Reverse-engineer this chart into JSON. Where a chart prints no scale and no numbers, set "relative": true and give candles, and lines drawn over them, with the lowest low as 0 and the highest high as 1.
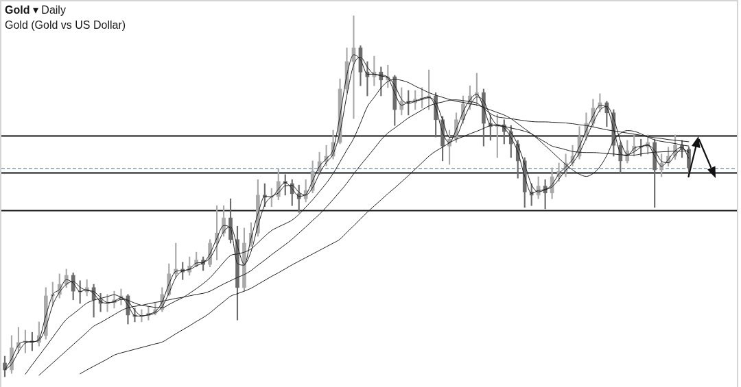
{
  "chart_data": {
    "type": "candlestick",
    "title": "Gold ▾ Daily",
    "subtitle": "Gold (Gold vs US Dollar)",
    "relative": true,
    "tick_labels": false,
    "categories": [
      null,
      null,
      null,
      null,
      null,
      null,
      null,
      null,
      null,
      null,
      null,
      null,
      null,
      null,
      null,
      null,
      null,
      null,
      null,
      null,
      null,
      null,
      null,
      null,
      null,
      null,
      null,
      null,
      null,
      null,
      null,
      null,
      null,
      null,
      null,
      null,
      null,
      null,
      null,
      null,
      null,
      null,
      null,
      null,
      null,
      null,
      null,
      null,
      null,
      null,
      null,
      null,
      null,
      null,
      null,
      null,
      null,
      null,
      null,
      null,
      null,
      null,
      null,
      null,
      null,
      null,
      null,
      null,
      null,
      null,
      null,
      null,
      null,
      null,
      null,
      null,
      null,
      null,
      null,
      null,
      null,
      null,
      null,
      null,
      null,
      null,
      null,
      null,
      null,
      null,
      null,
      null,
      null,
      null,
      null,
      null,
      null,
      null,
      null,
      null,
      null
    ],
    "colors": [
      "#6b6b6b",
      "#a9a9a9",
      "#a9a9a9",
      "#a9a9a9",
      "#6b6b6b",
      "#a9a9a9",
      "#a9a9a9",
      "#a9a9a9",
      "#a9a9a9",
      "#a9a9a9",
      "#6b6b6b",
      "#6b6b6b",
      "#a9a9a9",
      "#6b6b6b",
      "#6b6b6b",
      "#a9a9a9",
      "#a9a9a9",
      "#a9a9a9",
      "#6b6b6b",
      "#6b6b6b",
      "#a9a9a9",
      "#a9a9a9",
      "#a9a9a9",
      "#a9a9a9",
      "#a9a9a9",
      "#a9a9a9",
      "#6b6b6b",
      "#a9a9a9",
      "#a9a9a9",
      "#6b6b6b",
      "#a9a9a9",
      "#a9a9a9",
      "#a9a9a9",
      "#6b6b6b",
      "#6b6b6b",
      "#a9a9a9",
      "#a9a9a9",
      "#a9a9a9",
      "#6b6b6b",
      "#a9a9a9",
      "#a9a9a9",
      "#6b6b6b",
      "#6b6b6b",
      "#6b6b6b",
      "#a9a9a9",
      "#a9a9a9",
      "#a9a9a9",
      "#a9a9a9",
      "#a9a9a9",
      "#a9a9a9",
      "#a9a9a9",
      "#a9a9a9",
      "#6b6b6b",
      "#6b6b6b",
      "#a9a9a9",
      "#6b6b6b",
      "#a9a9a9",
      "#6b6b6b",
      "#a9a9a9",
      "#6b6b6b",
      "#a9a9a9",
      "#a9a9a9",
      "#a9a9a9",
      "#6b6b6b",
      "#6b6b6b",
      "#a9a9a9",
      "#a9a9a9",
      "#a9a9a9",
      "#a9a9a9",
      "#a9a9a9",
      "#6b6b6b",
      "#6b6b6b",
      "#a9a9a9",
      "#6b6b6b",
      "#6b6b6b",
      "#6b6b6b",
      "#6b6b6b",
      "#6b6b6b",
      "#a9a9a9",
      "#6b6b6b",
      "#a9a9a9",
      "#a9a9a9",
      "#a9a9a9",
      "#a9a9a9",
      "#a9a9a9",
      "#a9a9a9",
      "#a9a9a9",
      "#a9a9a9",
      "#6b6b6b",
      "#6b6b6b",
      "#6b6b6b",
      "#a9a9a9",
      "#a9a9a9",
      "#6b6b6b",
      "#a9a9a9",
      "#6b6b6b",
      "#a9a9a9",
      "#a9a9a9",
      "#a9a9a9",
      "#6b6b6b",
      "#6b6b6b"
    ],
    "ohlc": [
      [
        0.038,
        0.057,
        0,
        0.019
      ],
      [
        0.019,
        0.114,
        0.009,
        0.08
      ],
      [
        0.08,
        0.137,
        0.066,
        0.095
      ],
      [
        0.095,
        0.129,
        0.066,
        0.099
      ],
      [
        0.099,
        0.123,
        0.072,
        0.095
      ],
      [
        0.095,
        0.152,
        0.085,
        0.114
      ],
      [
        0.114,
        0.247,
        0.104,
        0.224
      ],
      [
        0.224,
        0.262,
        0.199,
        0.228
      ],
      [
        0.228,
        0.285,
        0.218,
        0.256
      ],
      [
        0.256,
        0.298,
        0.247,
        0.281
      ],
      [
        0.281,
        0.288,
        0.213,
        0.237
      ],
      [
        0.237,
        0.266,
        0.203,
        0.235
      ],
      [
        0.235,
        0.269,
        0.224,
        0.247
      ],
      [
        0.247,
        0.256,
        0.165,
        0.213
      ],
      [
        0.213,
        0.231,
        0.18,
        0.203
      ],
      [
        0.203,
        0.228,
        0.18,
        0.205
      ],
      [
        0.205,
        0.237,
        0.19,
        0.213
      ],
      [
        0.213,
        0.243,
        0.199,
        0.224
      ],
      [
        0.224,
        0.228,
        0.146,
        0.171
      ],
      [
        0.171,
        0.19,
        0.152,
        0.167
      ],
      [
        0.167,
        0.186,
        0.152,
        0.169
      ],
      [
        0.169,
        0.195,
        0.157,
        0.176
      ],
      [
        0.176,
        0.205,
        0.171,
        0.186
      ],
      [
        0.186,
        0.247,
        0.18,
        0.228
      ],
      [
        0.228,
        0.313,
        0.224,
        0.285
      ],
      [
        0.285,
        0.37,
        0.275,
        0.298
      ],
      [
        0.298,
        0.317,
        0.269,
        0.29
      ],
      [
        0.29,
        0.332,
        0.281,
        0.307
      ],
      [
        0.307,
        0.345,
        0.304,
        0.323
      ],
      [
        0.323,
        0.332,
        0.294,
        0.311
      ],
      [
        0.311,
        0.38,
        0.304,
        0.37
      ],
      [
        0.37,
        0.474,
        0.323,
        0.398
      ],
      [
        0.398,
        0.474,
        0.389,
        0.44
      ],
      [
        0.44,
        0.493,
        0.37,
        0.38
      ],
      [
        0.38,
        0.417,
        0.157,
        0.247
      ],
      [
        0.247,
        0.412,
        0.237,
        0.37
      ],
      [
        0.37,
        0.427,
        0.361,
        0.398
      ],
      [
        0.398,
        0.546,
        0.389,
        0.503
      ],
      [
        0.503,
        0.535,
        0.471,
        0.497
      ],
      [
        0.497,
        0.522,
        0.471,
        0.499
      ],
      [
        0.499,
        0.575,
        0.49,
        0.541
      ],
      [
        0.541,
        0.56,
        0.503,
        0.535
      ],
      [
        0.535,
        0.546,
        0.474,
        0.507
      ],
      [
        0.507,
        0.531,
        0.455,
        0.493
      ],
      [
        0.493,
        0.546,
        0.484,
        0.516
      ],
      [
        0.516,
        0.598,
        0.509,
        0.569
      ],
      [
        0.569,
        0.622,
        0.56,
        0.596
      ],
      [
        0.596,
        0.641,
        0.584,
        0.611
      ],
      [
        0.611,
        0.683,
        0.603,
        0.649
      ],
      [
        0.649,
        0.825,
        0.645,
        0.797
      ],
      [
        0.797,
        0.911,
        0.787,
        0.873
      ],
      [
        0.873,
        1,
        0.715,
        0.911
      ],
      [
        0.911,
        0.917,
        0.806,
        0.844
      ],
      [
        0.844,
        0.873,
        0.778,
        0.831
      ],
      [
        0.831,
        0.888,
        0.806,
        0.844
      ],
      [
        0.844,
        0.858,
        0.778,
        0.822
      ],
      [
        0.822,
        0.863,
        0.801,
        0.831
      ],
      [
        0.831,
        0.835,
        0.696,
        0.74
      ],
      [
        0.74,
        0.801,
        0.725,
        0.763
      ],
      [
        0.763,
        0.793,
        0.725,
        0.759
      ],
      [
        0.759,
        0.793,
        0.74,
        0.769
      ],
      [
        0.769,
        0.801,
        0.744,
        0.772
      ],
      [
        0.772,
        0.85,
        0.74,
        0.778
      ],
      [
        0.778,
        0.787,
        0.664,
        0.712
      ],
      [
        0.712,
        0.721,
        0.598,
        0.639
      ],
      [
        0.639,
        0.683,
        0.588,
        0.658
      ],
      [
        0.658,
        0.731,
        0.649,
        0.712
      ],
      [
        0.712,
        0.778,
        0.702,
        0.755
      ],
      [
        0.755,
        0.806,
        0.74,
        0.778
      ],
      [
        0.778,
        0.841,
        0.75,
        0.787
      ],
      [
        0.787,
        0.797,
        0.639,
        0.702
      ],
      [
        0.702,
        0.725,
        0.655,
        0.693
      ],
      [
        0.693,
        0.727,
        0.607,
        0.698
      ],
      [
        0.698,
        0.712,
        0.645,
        0.679
      ],
      [
        0.679,
        0.696,
        0.607,
        0.645
      ],
      [
        0.645,
        0.655,
        0.55,
        0.598
      ],
      [
        0.598,
        0.607,
        0.469,
        0.512
      ],
      [
        0.512,
        0.535,
        0.474,
        0.503
      ],
      [
        0.503,
        0.554,
        0.493,
        0.528
      ],
      [
        0.528,
        0.546,
        0.465,
        0.509
      ],
      [
        0.509,
        0.579,
        0.493,
        0.554
      ],
      [
        0.554,
        0.592,
        0.541,
        0.569
      ],
      [
        0.569,
        0.617,
        0.554,
        0.592
      ],
      [
        0.592,
        0.641,
        0.584,
        0.611
      ],
      [
        0.611,
        0.693,
        0.603,
        0.664
      ],
      [
        0.664,
        0.731,
        0.655,
        0.702
      ],
      [
        0.702,
        0.769,
        0.693,
        0.744
      ],
      [
        0.744,
        0.784,
        0.734,
        0.759
      ],
      [
        0.759,
        0.763,
        0.693,
        0.731
      ],
      [
        0.731,
        0.74,
        0.611,
        0.641
      ],
      [
        0.641,
        0.649,
        0.564,
        0.598
      ],
      [
        0.598,
        0.655,
        0.592,
        0.626
      ],
      [
        0.626,
        0.67,
        0.611,
        0.639
      ],
      [
        0.639,
        0.658,
        0.611,
        0.636
      ],
      [
        0.636,
        0.67,
        0.617,
        0.649
      ],
      [
        0.649,
        0.658,
        0.469,
        0.573
      ],
      [
        0.573,
        0.617,
        0.554,
        0.592
      ],
      [
        0.592,
        0.636,
        0.583,
        0.611
      ],
      [
        0.611,
        0.67,
        0.602,
        0.641
      ],
      [
        0.641,
        0.655,
        0.607,
        0.63
      ],
      [
        0.63,
        0.636,
        0.554,
        0.579
      ]
    ],
    "series": [
      {
        "type": "line",
        "color": "#1e1e1e",
        "values": [
          0.019,
          0.05,
          0.088,
          0.097,
          0.097,
          0.105,
          0.169,
          0.226,
          0.242,
          0.269,
          0.259,
          0.236,
          0.241,
          0.23,
          0.208,
          0.204,
          0.209,
          0.219,
          0.198,
          0.169,
          0.168,
          0.173,
          0.181,
          0.207,
          0.257,
          0.292,
          0.294,
          0.299,
          0.315,
          0.317,
          0.341,
          0.384,
          0.419,
          0.41,
          0.314,
          0.309,
          0.384,
          0.451,
          0.5,
          0.498,
          0.52,
          0.538,
          0.521,
          0.5,
          0.505,
          0.543,
          0.583,
          0.604,
          0.63,
          0.723,
          0.835,
          0.892,
          0.878,
          0.838,
          0.838,
          0.833,
          0.827,
          0.786,
          0.752,
          0.761,
          0.764,
          0.771,
          0.775,
          0.745,
          0.676,
          0.649,
          0.685,
          0.734,
          0.767,
          0.783,
          0.745,
          0.698,
          0.696,
          0.689,
          0.662,
          0.622,
          0.555,
          0.508,
          0.516,
          0.519,
          0.532,
          0.562,
          0.581,
          0.602,
          0.638,
          0.683,
          0.723,
          0.752,
          0.745,
          0.686,
          0.62,
          0.612,
          0.633,
          0.638,
          0.643,
          0.611,
          0.583,
          0.602,
          0.626,
          0.636,
          0.605
        ]
      },
      {
        "type": "line",
        "color": "#1e1e1e",
        "values": [
          0.019,
          0.035,
          0.069,
          0.093,
          0.097,
          0.101,
          0.137,
          0.198,
          0.234,
          0.256,
          0.264,
          0.248,
          0.239,
          0.236,
          0.219,
          0.206,
          0.207,
          0.214,
          0.209,
          0.184,
          0.169,
          0.171,
          0.177,
          0.194,
          0.232,
          0.275,
          0.293,
          0.297,
          0.307,
          0.316,
          0.329,
          0.363,
          0.402,
          0.415,
          0.362,
          0.312,
          0.347,
          0.418,
          0.476,
          0.499,
          0.509,
          0.529,
          0.53,
          0.511,
          0.503,
          0.524,
          0.563,
          0.594,
          0.617,
          0.677,
          0.779,
          0.864,
          0.885,
          0.858,
          0.838,
          0.836,
          0.83,
          0.807,
          0.769,
          0.757,
          0.763,
          0.768,
          0.773,
          0.76,
          0.711,
          0.663,
          0.667,
          0.71,
          0.751,
          0.775,
          0.764,
          0.722,
          0.697,
          0.693,
          0.676,
          0.642,
          0.589,
          0.532,
          0.512,
          0.518,
          0.526,
          0.547,
          0.572,
          0.592,
          0.62,
          0.661,
          0.703,
          0.738,
          0.749,
          0.716,
          0.653,
          0.616,
          0.623,
          0.636,
          0.641,
          0.627,
          0.597,
          0.593,
          0.614,
          0.631,
          0.621
        ]
      },
      {
        "type": "line",
        "color": "#1e1e1e",
        "values": [
          null,
          null,
          null,
          0.007,
          0.033,
          0.058,
          0.083,
          0.109,
          0.135,
          0.159,
          0.174,
          0.189,
          0.204,
          0.212,
          0.217,
          0.222,
          0.227,
          0.22,
          0.212,
          0.204,
          0.198,
          0.195,
          0.192,
          0.191,
          0.2,
          0.21,
          0.219,
          0.231,
          0.244,
          0.258,
          0.274,
          0.295,
          0.317,
          0.336,
          0.34,
          0.345,
          0.354,
          0.371,
          0.389,
          0.405,
          0.415,
          0.424,
          0.434,
          0.45,
          0.47,
          0.49,
          0.513,
          0.536,
          0.563,
          0.595,
          0.628,
          0.66,
          0.703,
          0.748,
          0.774,
          0.8,
          0.818,
          0.824,
          0.821,
          0.815,
          0.805,
          0.796,
          0.787,
          0.78,
          0.774,
          0.768,
          0.763,
          0.76,
          0.756,
          0.753,
          0.746,
          0.739,
          0.732,
          0.725,
          0.715,
          0.701,
          0.687,
          0.673,
          0.657,
          0.64,
          0.623,
          0.605,
          0.588,
          0.573,
          0.561,
          0.555,
          0.563,
          0.582,
          0.613,
          0.654,
          0.674,
          0.682,
          0.68,
          0.673,
          0.664,
          0.656,
          0.652,
          0.649,
          0.646,
          0.642,
          0.639
        ]
      },
      {
        "type": "line",
        "color": "#1e1e1e",
        "values": [
          null,
          null,
          null,
          null,
          null,
          0.004,
          0.021,
          0.038,
          0.055,
          0.072,
          0.089,
          0.106,
          0.123,
          0.14,
          0.15,
          0.161,
          0.172,
          0.183,
          0.191,
          0.195,
          0.198,
          0.202,
          0.206,
          0.209,
          0.213,
          0.217,
          0.22,
          0.224,
          0.228,
          0.231,
          0.237,
          0.247,
          0.257,
          0.266,
          0.275,
          0.283,
          0.294,
          0.309,
          0.323,
          0.338,
          0.352,
          0.366,
          0.381,
          0.398,
          0.415,
          0.433,
          0.45,
          0.47,
          0.491,
          0.513,
          0.536,
          0.562,
          0.586,
          0.609,
          0.632,
          0.656,
          0.675,
          0.689,
          0.703,
          0.717,
          0.728,
          0.739,
          0.75,
          0.757,
          0.761,
          0.766,
          0.767,
          0.765,
          0.762,
          0.758,
          0.744,
          0.729,
          0.72,
          0.717,
          0.715,
          0.712,
          0.709,
          0.707,
          0.706,
          0.706,
          0.705,
          0.704,
          0.703,
          0.701,
          0.698,
          0.696,
          0.692,
          0.688,
          0.684,
          0.681,
          0.678,
          0.675,
          0.672,
          0.669,
          0.665,
          0.662,
          0.66,
          0.657,
          0.655,
          0.653,
          0.651
        ]
      },
      {
        "type": "line",
        "color": "#1e1e1e",
        "values": [
          null,
          null,
          null,
          null,
          null,
          null,
          null,
          null,
          null,
          null,
          null,
          0.008,
          0.019,
          0.029,
          0.039,
          0.049,
          0.06,
          0.066,
          0.071,
          0.076,
          0.081,
          0.086,
          0.091,
          0.096,
          0.107,
          0.119,
          0.13,
          0.141,
          0.153,
          0.164,
          0.177,
          0.193,
          0.208,
          0.223,
          0.23,
          0.237,
          0.245,
          0.256,
          0.267,
          0.278,
          0.288,
          0.299,
          0.31,
          0.32,
          0.33,
          0.34,
          0.35,
          0.36,
          0.37,
          0.381,
          0.4,
          0.418,
          0.437,
          0.456,
          0.473,
          0.49,
          0.507,
          0.523,
          0.54,
          0.557,
          0.575,
          0.593,
          0.611,
          0.625,
          0.636,
          0.648,
          0.658,
          0.665,
          0.673,
          0.68,
          0.688,
          0.696,
          0.698,
          0.694,
          0.689,
          0.685,
          0.68,
          0.673,
          0.661,
          0.65,
          0.639,
          0.634,
          0.629,
          0.624,
          0.622,
          0.621,
          0.621,
          0.62,
          0.618,
          0.617,
          0.615,
          0.614,
          0.614,
          0.617,
          0.62,
          0.622,
          0.623,
          0.624,
          0.625,
          0.625,
          0.626
        ]
      }
    ],
    "ref_lines": [
      {
        "axis": "y",
        "value": 0.667,
        "color": "#111111",
        "line_style": "solid"
      },
      {
        "axis": "y",
        "value": 0.576,
        "color": "#3e6d91",
        "line_style": "dashed"
      },
      {
        "axis": "y",
        "value": 0.565,
        "color": "#111111",
        "line_style": "solid"
      },
      {
        "axis": "y",
        "value": 0.462,
        "color": "#111111",
        "line_style": "solid"
      }
    ]
  }
}
